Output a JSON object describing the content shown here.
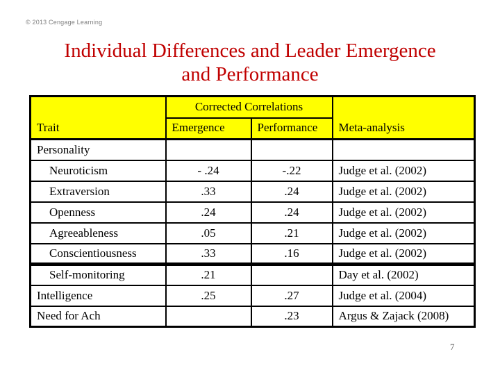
{
  "slide": {
    "copyright": "© 2013 Cengage Learning",
    "title_line1": "Individual Differences and Leader Emergence",
    "title_line2": "and Performance",
    "page_number": "7",
    "colors": {
      "title": "#C00000",
      "header_bg": "#FFFF00",
      "border": "#000000",
      "muted_text": "#808080",
      "page_number_text": "#595959"
    }
  },
  "table": {
    "group_header": "Corrected Correlations",
    "columns": [
      "Trait",
      "Emergence",
      "Performance",
      "Meta-analysis"
    ],
    "rows": [
      {
        "trait": "Personality",
        "indent": false,
        "emergence": "",
        "performance": "",
        "meta": ""
      },
      {
        "trait": "Neuroticism",
        "indent": true,
        "emergence": "- .24",
        "performance": "-.22",
        "meta": "Judge et al. (2002)"
      },
      {
        "trait": "Extraversion",
        "indent": true,
        "emergence": ".33",
        "performance": ".24",
        "meta": "Judge et al. (2002)"
      },
      {
        "trait": "Openness",
        "indent": true,
        "emergence": ".24",
        "performance": ".24",
        "meta": "Judge et al. (2002)"
      },
      {
        "trait": "Agreeableness",
        "indent": true,
        "emergence": ".05",
        "performance": ".21",
        "meta": "Judge et al. (2002)"
      },
      {
        "trait": "Conscientiousness",
        "indent": true,
        "emergence": ".33",
        "performance": ".16",
        "meta": "Judge et al. (2002)"
      },
      {
        "trait": "Self-monitoring",
        "indent": true,
        "emergence": ".21",
        "performance": "",
        "meta": "Day et al. (2002)",
        "section_break_above": true
      },
      {
        "trait": "Intelligence",
        "indent": false,
        "emergence": ".25",
        "performance": ".27",
        "meta": "Judge et al. (2004)"
      },
      {
        "trait": "Need for Ach",
        "indent": false,
        "emergence": "",
        "performance": ".23",
        "meta": "Argus & Zajack (2008)"
      }
    ]
  }
}
